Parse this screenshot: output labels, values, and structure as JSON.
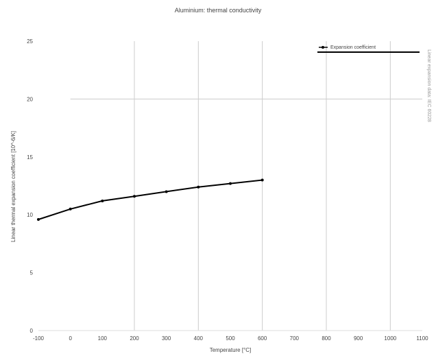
{
  "chart_data": {
    "type": "line",
    "title": "Aluminium: thermal conductivity",
    "xlabel": "Temperature [°C]",
    "ylabel": "Linear thermal expansion coefficient [10^-6/K]",
    "side_note": "Linear expansion data: IEC 60228",
    "xlim": [
      -100,
      1100
    ],
    "ylim": [
      0,
      25
    ],
    "x_ticks": [
      -100,
      0,
      100,
      200,
      300,
      400,
      500,
      600,
      700,
      800,
      900,
      1000,
      1100
    ],
    "x_tick_labels": [
      "-100",
      "0",
      "100",
      "200",
      "300",
      "400",
      "500",
      "600",
      "700",
      "800",
      "900",
      "1000",
      "1100"
    ],
    "y_ticks": [
      0,
      5,
      10,
      15,
      20,
      25
    ],
    "y_tick_labels": [
      "0",
      "5",
      "10",
      "15",
      "20",
      "25"
    ],
    "grid": true,
    "legend_position": "top-right",
    "series": [
      {
        "name": "Expansion coefficient",
        "color": "#000000",
        "x": [
          -100,
          0,
          100,
          200,
          300,
          400,
          500,
          600
        ],
        "y": [
          9.6,
          10.5,
          11.2,
          11.6,
          12.0,
          12.4,
          12.7,
          13.0
        ]
      }
    ]
  }
}
